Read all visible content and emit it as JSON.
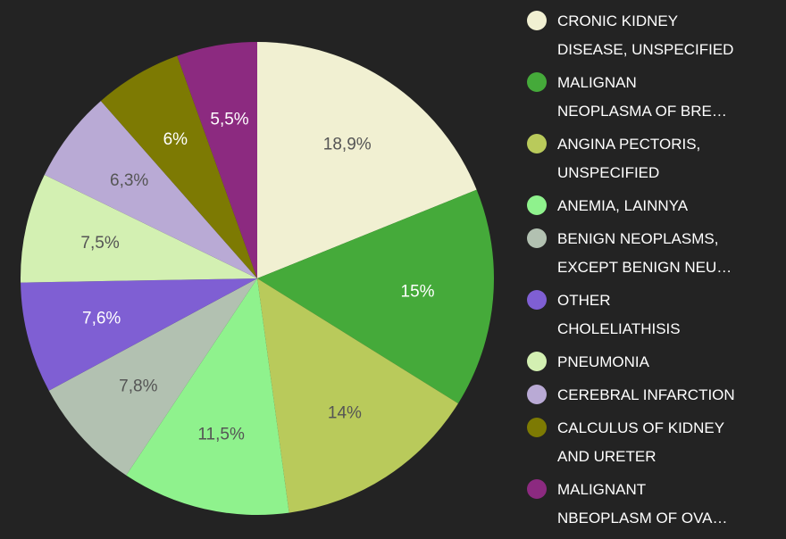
{
  "chart_data": {
    "type": "pie",
    "categories": [
      "CRONIC KIDNEY\nDISEASE, UNSPECIFIED",
      "MALIGNAN\nNEOPLASMA OF BRE…",
      "ANGINA PECTORIS,\nUNSPECIFIED",
      "ANEMIA, LAINNYA",
      "BENIGN NEOPLASMS,\nEXCEPT BENIGN NEU…",
      "OTHER\nCHOLELIATHISIS",
      "PNEUMONIA",
      "CEREBRAL INFARCTION",
      "CALCULUS OF KIDNEY\nAND URETER",
      "MALIGNANT\nNBEOPLASM OF OVA…"
    ],
    "values": [
      18.9,
      15,
      14,
      11.5,
      7.8,
      7.6,
      7.5,
      6.3,
      6,
      5.5
    ],
    "value_labels": [
      "18,9%",
      "15%",
      "14%",
      "11,5%",
      "7,8%",
      "7,6%",
      "7,5%",
      "6,3%",
      "6%",
      "5,5%"
    ],
    "colors": [
      "#f1f0d2",
      "#45aa3a",
      "#b9ca5b",
      "#8ff28d",
      "#b2c1b1",
      "#7f5fd3",
      "#d3f0b2",
      "#b9aad5",
      "#7d7a03",
      "#8c2a80"
    ],
    "legend": "right"
  }
}
